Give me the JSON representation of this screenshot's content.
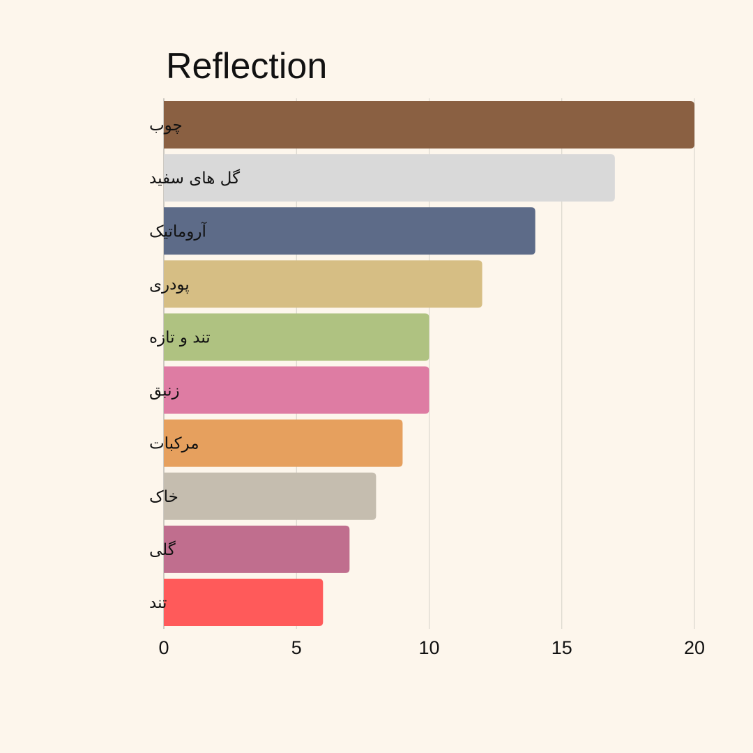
{
  "chart_data": {
    "type": "bar",
    "orientation": "horizontal",
    "title": "Reflection",
    "xlabel": "",
    "ylabel": "",
    "xlim": [
      0,
      20
    ],
    "xticks": [
      0,
      5,
      10,
      15,
      20
    ],
    "grid": "vertical",
    "legend": "none",
    "categories": [
      "چوب",
      "گل های سفید",
      "آروماتیک",
      "پودری",
      "تند و تازه",
      "زنبق",
      "مرکبات",
      "خاک",
      "گلی",
      "تند"
    ],
    "values": [
      20,
      17,
      14,
      12,
      10,
      10,
      9,
      8,
      7,
      6
    ],
    "colors": [
      "#8a6042",
      "#d9d9d9",
      "#5d6b88",
      "#d6be84",
      "#afc281",
      "#de7ca3",
      "#e6a05e",
      "#c5bdaf",
      "#c06e8e",
      "#ff5a5a"
    ]
  },
  "colors": {
    "background": "#fdf6ec",
    "gridline": "#d3d0c8",
    "axis": "#bdbab3",
    "text": "#111111"
  }
}
